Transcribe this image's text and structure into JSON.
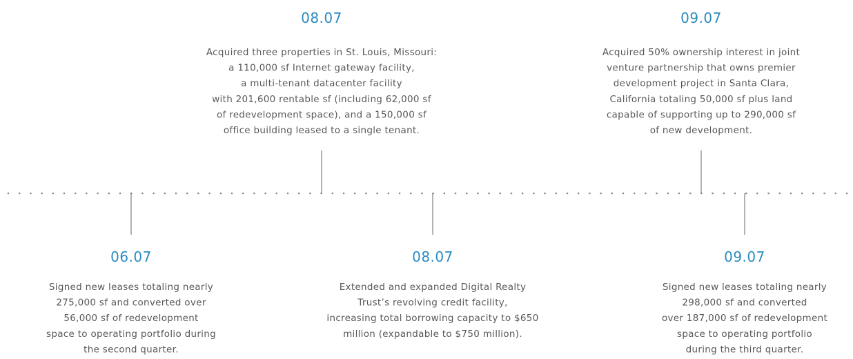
{
  "events": [
    {
      "date": "08.07",
      "lines": [
        "Acquired three properties in St. Louis, Missouri:",
        "a 110,000 sf Internet gateway facility,",
        "a multi-tenant datacenter facility",
        "with 201,600 rentable sf (including 62,000 sf",
        "of redevelopment space), and a 150,000 sf",
        "office building leased to a single tenant."
      ]
    },
    {
      "date": "09.07",
      "lines": [
        "Acquired 50% ownership interest in joint",
        "venture partnership that owns premier",
        "development project in Santa Clara,",
        "California totaling 50,000 sf plus land",
        "capable of supporting up to 290,000 sf",
        "of new development."
      ]
    },
    {
      "date": "06.07",
      "lines": [
        "Signed new leases totaling nearly",
        "275,000 sf and converted over",
        "56,000 sf of redevelopment",
        "space to operating portfolio during",
        "the second quarter."
      ]
    },
    {
      "date": "08.07",
      "lines": [
        "Extended and expanded Digital Realty",
        "Trust’s revolving credit facility,",
        "increasing total borrowing capacity to $650",
        "million (expandable to $750 million)."
      ]
    },
    {
      "date": "09.07",
      "lines": [
        "Signed new leases totaling nearly",
        "298,000 sf and converted",
        "over 187,000 sf of redevelopment",
        "space to operating portfolio",
        "during the third quarter."
      ]
    }
  ]
}
